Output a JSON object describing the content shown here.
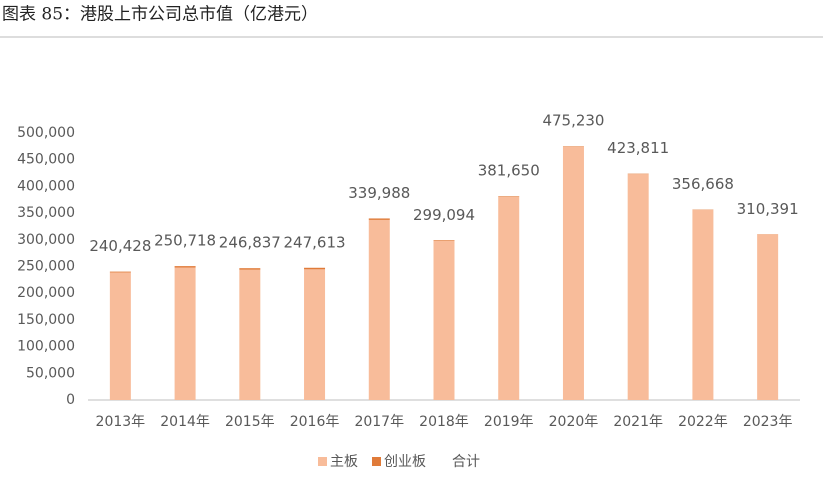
{
  "chart_data": {
    "type": "stacked_bar",
    "title": "图表 85：港股上市公司总市值（亿港元）",
    "categories": [
      "2013年",
      "2014年",
      "2015年",
      "2016年",
      "2017年",
      "2018年",
      "2019年",
      "2020年",
      "2021年",
      "2022年",
      "2023年"
    ],
    "series": [
      {
        "name": "主板",
        "color": "#f8bc9a",
        "values": [
          238888,
          248148,
          244027,
          244713,
          337248,
          297734,
          380570,
          474430,
          423011,
          356068,
          309991
        ]
      },
      {
        "name": "创业板",
        "color": "#e07b39",
        "values": [
          1540,
          2570,
          2810,
          2900,
          2740,
          1360,
          1080,
          800,
          800,
          600,
          400
        ]
      }
    ],
    "totals": {
      "name": "合计",
      "values": [
        240428,
        250718,
        246837,
        247613,
        339988,
        299094,
        381650,
        475230,
        423811,
        356668,
        310391
      ],
      "value_labels": [
        "240,428",
        "250,718",
        "246,837",
        "247,613",
        "339,988",
        "299,094",
        "381,650",
        "475,230",
        "423,811",
        "356,668",
        "310,391"
      ]
    },
    "ylim": [
      0,
      500000
    ],
    "yticks": [
      0,
      {
        "value": 50000,
        "label": "50,000"
      },
      {
        "value": 100000,
        "label": "100,000"
      },
      {
        "value": 150000,
        "label": "150,000"
      },
      {
        "value": 200000,
        "label": "200,000"
      },
      {
        "value": 250000,
        "label": "250,000"
      },
      {
        "value": 300000,
        "label": "300,000"
      },
      {
        "value": 350000,
        "label": "350,000"
      },
      {
        "value": 400000,
        "label": "400,000"
      },
      {
        "value": 450000,
        "label": "450,000"
      },
      {
        "value": 500000,
        "label": "500,000"
      }
    ],
    "grid": false,
    "legend": "bottom"
  }
}
